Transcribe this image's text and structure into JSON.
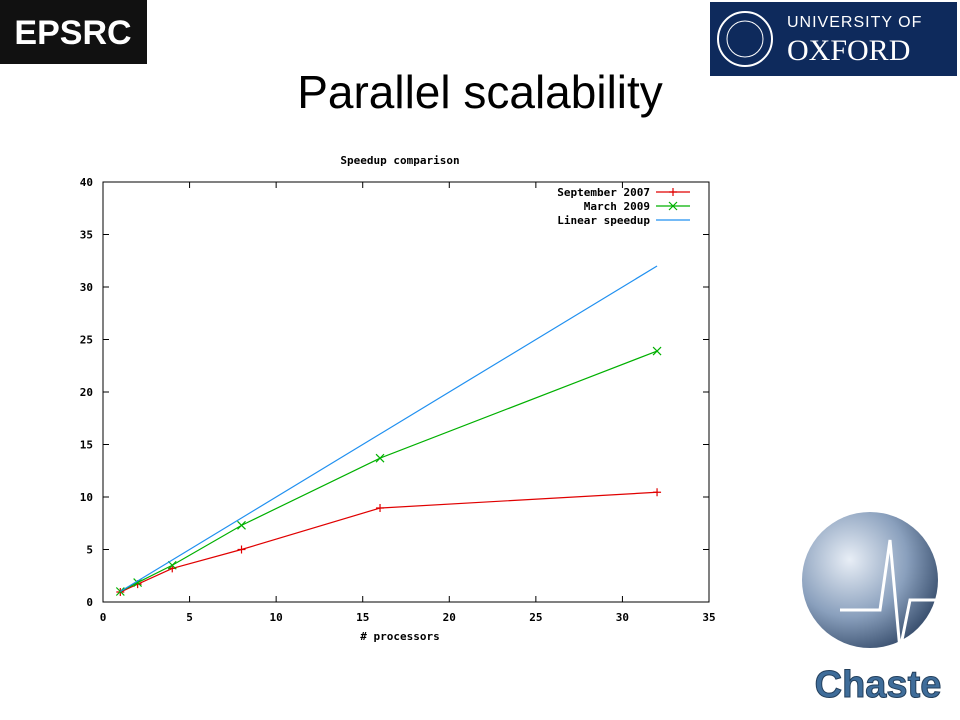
{
  "slide": {
    "title": "Parallel scalability",
    "left_logo": "EPSRC",
    "right_logo_top": "UNIVERSITY OF",
    "right_logo_bottom": "OXFORD",
    "corner_logo": "Chaste"
  },
  "chart_data": {
    "type": "line",
    "title": "Speedup comparison",
    "x_label": "# processors",
    "x": [
      1,
      2,
      4,
      8,
      16,
      32
    ],
    "series": [
      {
        "name": "September 2007",
        "color": "#e00000",
        "marker": "+",
        "values": [
          0.95,
          1.7,
          3.2,
          5.0,
          8.95,
          10.45
        ]
      },
      {
        "name": "March 2009",
        "color": "#00b000",
        "marker": "x",
        "values": [
          1.0,
          1.85,
          3.5,
          7.3,
          13.7,
          23.9
        ]
      },
      {
        "name": "Linear speedup",
        "color": "#2090f0",
        "values": [
          1,
          2,
          4,
          8,
          16,
          32
        ]
      }
    ],
    "xlim": [
      0,
      35
    ],
    "xticks": [
      0,
      5,
      10,
      15,
      20,
      25,
      30,
      35
    ],
    "ylim": [
      0,
      40
    ],
    "yticks": [
      0,
      5,
      10,
      15,
      20,
      25,
      30,
      35,
      40
    ],
    "grid": false,
    "legend": "upper right"
  }
}
